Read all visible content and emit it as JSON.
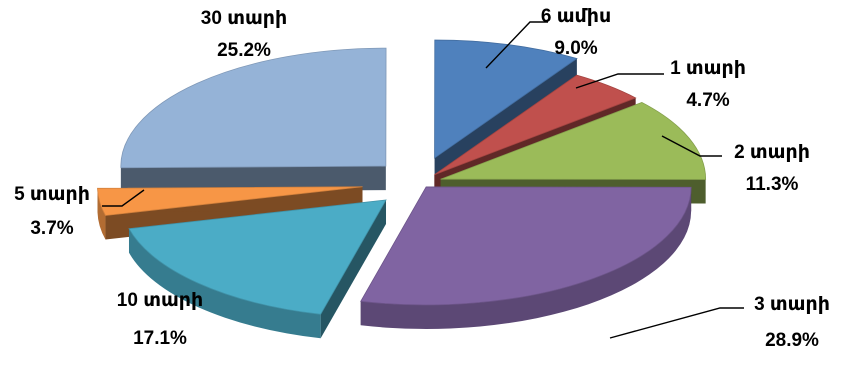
{
  "chart_data": {
    "type": "pie",
    "style": "3d-exploded",
    "legend": "none",
    "slices": [
      {
        "label": "6 ամիս",
        "value": 9.0,
        "value_label": "9.0%",
        "color": "#4F81BD"
      },
      {
        "label": "1 տարի",
        "value": 4.7,
        "value_label": "4.7%",
        "color": "#C0504D"
      },
      {
        "label": "2 տարի",
        "value": 11.3,
        "value_label": "11.3%",
        "color": "#9BBB59"
      },
      {
        "label": "3 տարի",
        "value": 28.9,
        "value_label": "28.9%",
        "color": "#8064A2"
      },
      {
        "label": "10 տարի",
        "value": 17.1,
        "value_label": "17.1%",
        "color": "#4BACC6"
      },
      {
        "label": "5 տարի",
        "value": 3.7,
        "value_label": "3.7%",
        "color": "#F79646"
      },
      {
        "label": "30 տարի",
        "value": 25.2,
        "value_label": "25.2%",
        "color": "#95B3D7"
      }
    ]
  }
}
